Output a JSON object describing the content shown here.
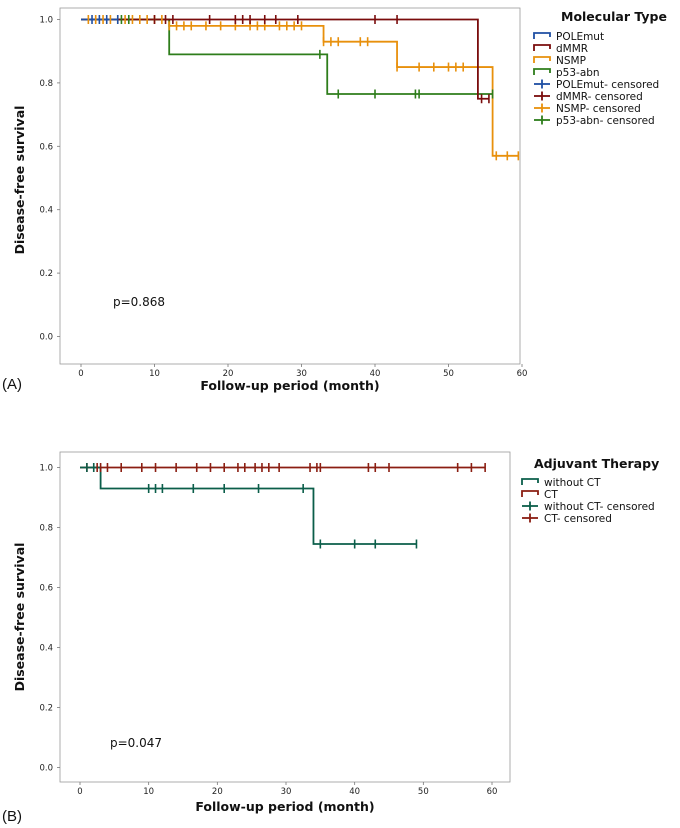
{
  "chart_data": [
    {
      "type": "line",
      "subtype": "kaplan-meier",
      "panel_label": "(A)",
      "xlabel": "Follow-up period (month)",
      "ylabel": "Disease-free survival",
      "xlim": [
        -5,
        62
      ],
      "ylim": [
        -0.05,
        1.05
      ],
      "xticks": [
        "0",
        "10",
        "20",
        "30",
        "40",
        "50",
        "60"
      ],
      "yticks": [
        "0.0",
        "0.2",
        "0.4",
        "0.6",
        "0.8",
        "1.0"
      ],
      "annotation": "p=0.868",
      "legend_title": "Molecular Type",
      "legend": [
        "POLEmut",
        "dMMR",
        "NSMP",
        "p53-abn",
        "POLEmut- censored",
        "dMMR- censored",
        "NSMP- censored",
        "p53-abn- censored"
      ],
      "series": [
        {
          "name": "NSMP",
          "color": "#e8900c",
          "x": [
            0,
            12,
            33,
            43,
            56,
            59.5
          ],
          "y": [
            1.0,
            0.98,
            0.93,
            0.85,
            0.57,
            0.57
          ],
          "censored_x": [
            1,
            2,
            3,
            4,
            5,
            6,
            7,
            8,
            9,
            10,
            11,
            12,
            13,
            14,
            15,
            17,
            19,
            21,
            23,
            24,
            25,
            27,
            28,
            29,
            30,
            33,
            34,
            35,
            38,
            39,
            43,
            46,
            48,
            50,
            51,
            52,
            56.5,
            58,
            59.5
          ]
        },
        {
          "name": "p53-abn",
          "color": "#2e7d1b",
          "x": [
            0,
            12,
            33.5,
            56
          ],
          "y": [
            1.0,
            0.89,
            0.765,
            0.765
          ],
          "censored_x": [
            5.5,
            6.5,
            32.5,
            35,
            40,
            45.5,
            46,
            56
          ]
        },
        {
          "name": "dMMR",
          "color": "#7a0c0c",
          "x": [
            0,
            54,
            55.5
          ],
          "y": [
            1.0,
            0.75,
            0.75
          ],
          "censored_x": [
            10,
            11.5,
            12.5,
            17.5,
            21,
            22,
            23,
            25,
            26.5,
            29.5,
            40,
            43,
            54.5,
            55.5
          ]
        },
        {
          "name": "POLEmut",
          "color": "#1f4fa3",
          "x": [
            0,
            5
          ],
          "y": [
            1.0,
            1.0
          ],
          "censored_x": [
            1.5,
            2.5,
            3.5,
            5
          ]
        }
      ]
    },
    {
      "type": "line",
      "subtype": "kaplan-meier",
      "panel_label": "(B)",
      "xlabel": "Follow-up period (month)",
      "ylabel": "Disease-free survival",
      "xlim": [
        -3,
        62
      ],
      "ylim": [
        -0.05,
        1.05
      ],
      "xticks": [
        "0",
        "10",
        "20",
        "30",
        "40",
        "50",
        "60"
      ],
      "yticks": [
        "0.0",
        "0.2",
        "0.4",
        "0.6",
        "0.8",
        "1.0"
      ],
      "annotation": "p=0.047",
      "legend_title": "Adjuvant Therapy",
      "legend": [
        "without CT",
        "CT",
        "without CT- censored",
        "CT- censored"
      ],
      "series": [
        {
          "name": "CT",
          "color": "#8b1e12",
          "x": [
            0,
            59
          ],
          "y": [
            1.0,
            1.0
          ],
          "censored_x": [
            1,
            2.5,
            3,
            4,
            6,
            9,
            11,
            14,
            17,
            19,
            21,
            23,
            24,
            25.5,
            26.5,
            27.5,
            29,
            33.5,
            34.5,
            35,
            42,
            43,
            45,
            55,
            57,
            59
          ]
        },
        {
          "name": "without CT",
          "color": "#0b5e4a",
          "x": [
            0,
            3,
            34,
            49
          ],
          "y": [
            1.0,
            0.93,
            0.745,
            0.745
          ],
          "censored_x": [
            1,
            2,
            10,
            11,
            12,
            16.5,
            21,
            26,
            32.5,
            35,
            40,
            43,
            49
          ]
        }
      ]
    }
  ]
}
